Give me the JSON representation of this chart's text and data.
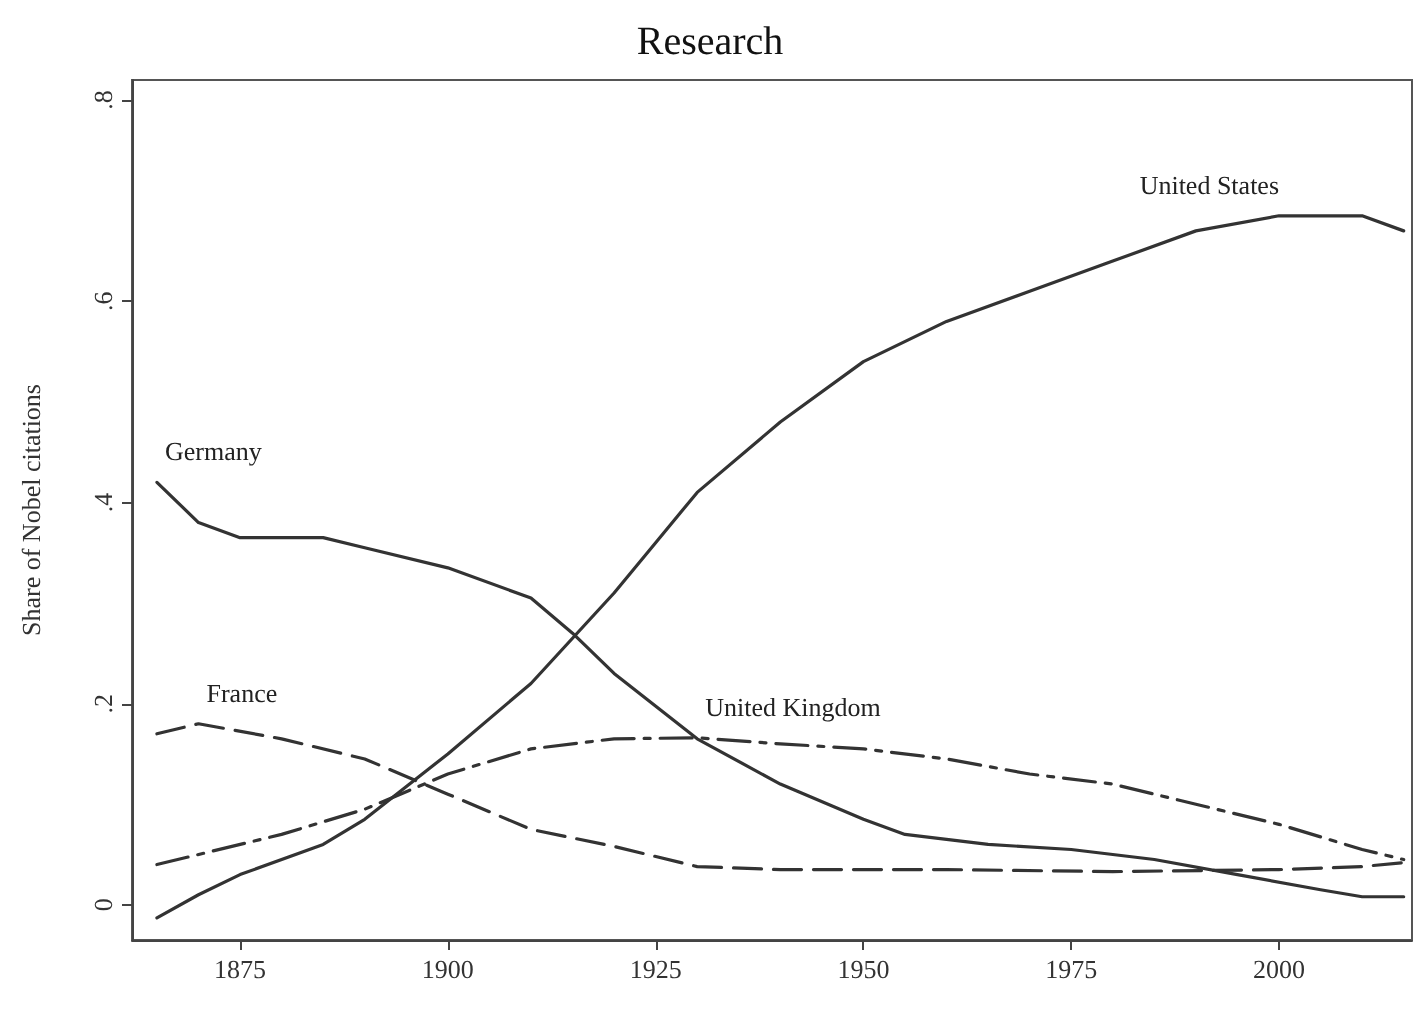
{
  "chart_data": {
    "type": "line",
    "title": "Research",
    "ylabel": "Share of Nobel citations",
    "xlim": [
      1862,
      2016
    ],
    "xticks": [
      1875,
      1900,
      1925,
      1950,
      1975,
      2000
    ],
    "ylim": [
      -0.035,
      0.82
    ],
    "yticks": [
      0,
      {
        "value": 0.2,
        "label": ".2"
      },
      {
        "value": 0.4,
        "label": ".4"
      },
      {
        "value": 0.6,
        "label": ".6"
      },
      {
        "value": 0.8,
        "label": ".8"
      }
    ],
    "grid": false,
    "legend": false,
    "marker": "none",
    "series": [
      {
        "name": "United States",
        "color": "#333333",
        "line_style": "solid",
        "x": [
          1865,
          1870,
          1875,
          1885,
          1890,
          1900,
          1910,
          1920,
          1925,
          1930,
          1940,
          1950,
          1960,
          1970,
          1980,
          1990,
          2000,
          2010,
          2015
        ],
        "values": [
          -0.013,
          0.01,
          0.03,
          0.06,
          0.085,
          0.15,
          0.22,
          0.31,
          0.36,
          0.41,
          0.48,
          0.54,
          0.58,
          0.61,
          0.64,
          0.67,
          0.685,
          0.685,
          0.67
        ]
      },
      {
        "name": "Germany",
        "color": "#333333",
        "line_style": "solid",
        "x": [
          1865,
          1870,
          1875,
          1885,
          1890,
          1900,
          1910,
          1915,
          1920,
          1930,
          1940,
          1950,
          1955,
          1965,
          1975,
          1985,
          1995,
          2005,
          2010,
          2015
        ],
        "values": [
          0.42,
          0.38,
          0.365,
          0.365,
          0.355,
          0.335,
          0.305,
          0.27,
          0.23,
          0.165,
          0.12,
          0.085,
          0.07,
          0.06,
          0.055,
          0.045,
          0.03,
          0.015,
          0.008,
          0.008
        ]
      },
      {
        "name": "France",
        "color": "#333333",
        "line_style": "dashed",
        "x": [
          1865,
          1870,
          1880,
          1890,
          1900,
          1910,
          1920,
          1930,
          1940,
          1960,
          1980,
          2000,
          2010,
          2015
        ],
        "values": [
          0.17,
          0.18,
          0.165,
          0.145,
          0.11,
          0.075,
          0.058,
          0.038,
          0.035,
          0.035,
          0.033,
          0.035,
          0.038,
          0.042
        ]
      },
      {
        "name": "United Kingdom",
        "color": "#333333",
        "line_style": "dashdot",
        "x": [
          1865,
          1880,
          1890,
          1900,
          1910,
          1920,
          1930,
          1940,
          1950,
          1960,
          1970,
          1980,
          1990,
          2000,
          2010,
          2015
        ],
        "values": [
          0.04,
          0.07,
          0.095,
          0.13,
          0.155,
          0.165,
          0.166,
          0.16,
          0.155,
          0.145,
          0.13,
          0.12,
          0.1,
          0.08,
          0.055,
          0.045
        ]
      }
    ]
  }
}
